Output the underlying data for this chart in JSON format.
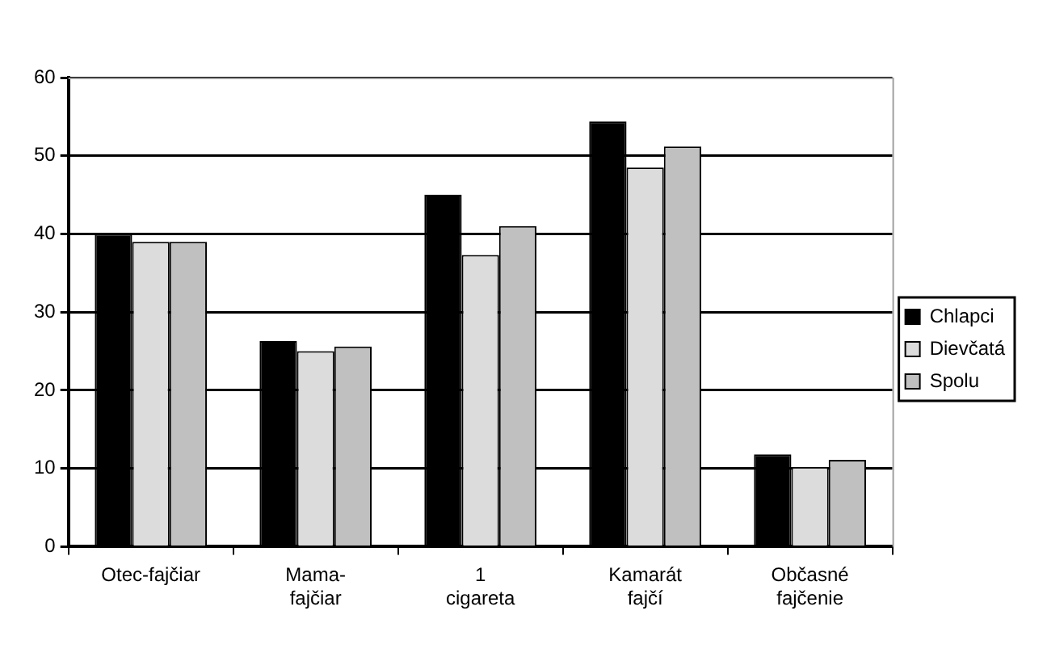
{
  "chart_data": {
    "type": "bar",
    "categories": [
      "Otec-fajčiar",
      "Mama- fajčiar",
      "1 cigareta",
      "Kamarát fajčí",
      "Občasné fajčenie"
    ],
    "series": [
      {
        "name": "Chlapci",
        "color": "#000000",
        "values": [
          40,
          26.3,
          45,
          54.4,
          11.8
        ]
      },
      {
        "name": "Dievčatá",
        "color": "#dcdcdc",
        "values": [
          39,
          25,
          37.3,
          48.5,
          10.2
        ]
      },
      {
        "name": "Spolu",
        "color": "#c0c0c0",
        "values": [
          39,
          25.6,
          41,
          51.2,
          11.1
        ]
      }
    ],
    "ylim": [
      0,
      60
    ],
    "yticks": [
      0,
      10,
      20,
      30,
      40,
      50,
      60
    ],
    "grid": "y",
    "legend": "right"
  }
}
